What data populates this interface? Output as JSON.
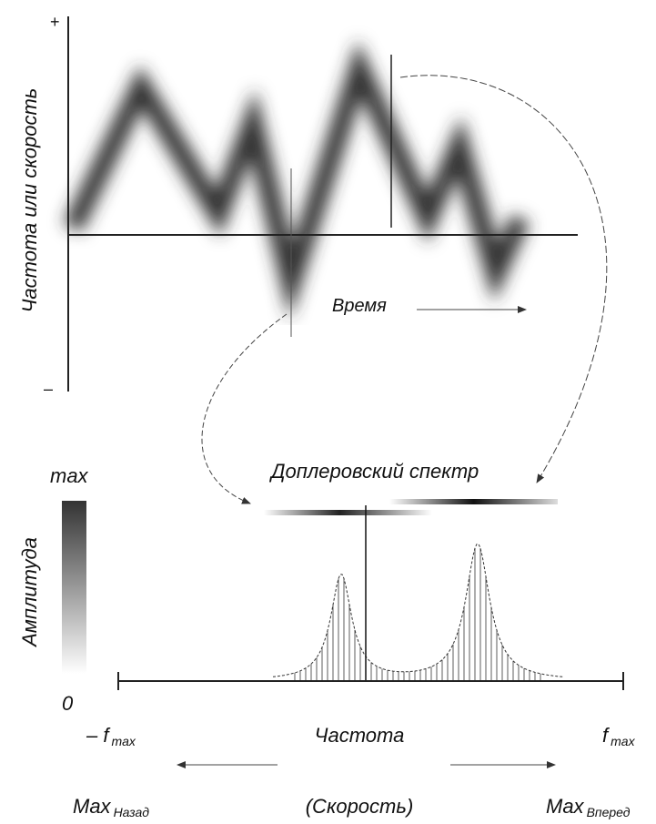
{
  "top_plot": {
    "axis_plus": "+",
    "axis_minus": "–",
    "y_label": "Частота или скорость",
    "x_label": "Время"
  },
  "spectrum_title": "Доплеровский спектр",
  "amplitude_scale": {
    "max": "max",
    "min": "0",
    "label": "Амплитуда"
  },
  "bottom_plot": {
    "left_limit": {
      "text": "– f",
      "sub": "max"
    },
    "right_limit": {
      "text": "f",
      "sub": "max"
    },
    "x_label": "Частота",
    "x_sublabel": "(Скорость)",
    "left_direction": {
      "text": "Max",
      "sub": "Назад"
    },
    "right_direction": {
      "text": "Max",
      "sub": "Вперед"
    }
  }
}
